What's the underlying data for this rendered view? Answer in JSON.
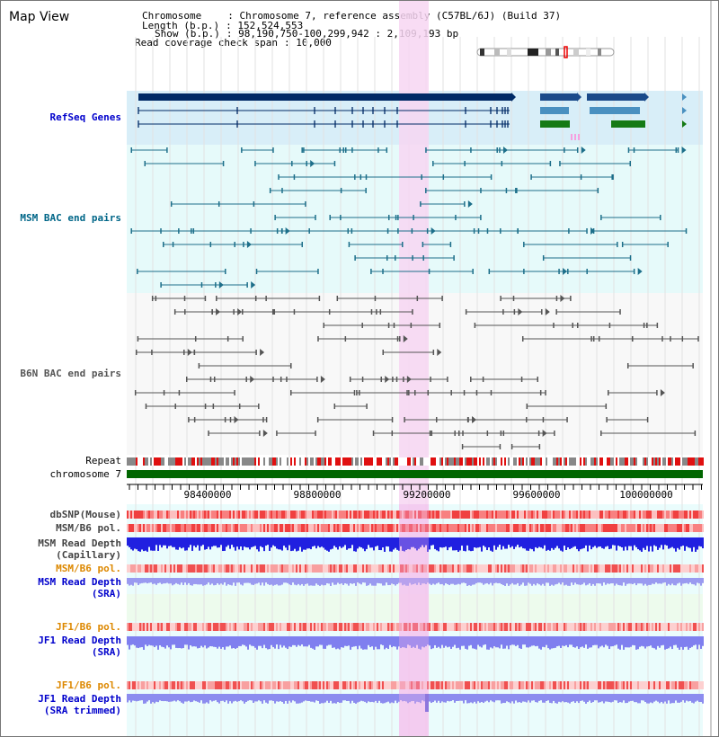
{
  "title": "Map View",
  "info": {
    "chromosome_label": "Chromosome",
    "chromosome_value": ": Chromosome 7, reference assembly (C57BL/6J) (Build 37)",
    "length_label": "Length (b.p.)",
    "length_value": ": 152,524,553",
    "show_label": "Show (b.p.)",
    "show_value": ": 98,190,750-100,299,942 : 2,109,193 bp",
    "coverage_label": "Read coverage check span",
    "coverage_value": ": 10,000"
  },
  "tracks": {
    "refseq": "RefSeq Genes",
    "msm_bac": "MSM BAC end pairs",
    "b6n_bac": "B6N BAC end pairs",
    "repeat": "Repeat",
    "chromosome": "chromosome 7",
    "dbsnp": "dbSNP(Mouse)",
    "msm_b6_pol": "MSM/B6 pol.",
    "msm_depth_cap_1": "MSM Read Depth",
    "msm_depth_cap_2": "(Capillary)",
    "msm_b6_pol2": "MSM/B6 pol.",
    "msm_depth_sra_1": "MSM Read Depth",
    "msm_depth_sra_2": "(SRA)",
    "jf1_b6_pol": "JF1/B6 pol.",
    "jf1_depth_sra_1": "JF1 Read Depth",
    "jf1_depth_sra_2": "(SRA)",
    "jf1_b6_pol2": "JF1/B6 pol.",
    "jf1_depth_trim_1": "JF1 Read Depth",
    "jf1_depth_trim_2": "(SRA trimmed)"
  },
  "ruler": {
    "ticks": [
      "98400000",
      "98800000",
      "99200000",
      "99600000",
      "100000000"
    ]
  },
  "colors": {
    "refseq_label": "#0000cc",
    "msm_label": "#006688",
    "b6n_label": "#444444",
    "orange_label": "#dd8800",
    "blue_label": "#0000cc",
    "highlight": "#f7d6f2",
    "refseq_bg": "#d8eef8",
    "msm_bg": "#e6fafa",
    "chrom_bar": "#006600"
  }
}
